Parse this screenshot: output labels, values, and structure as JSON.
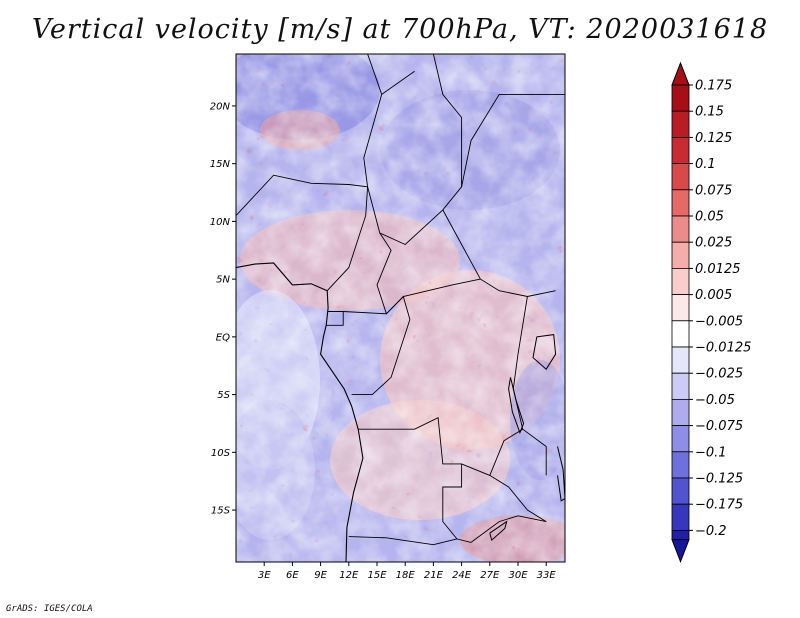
{
  "title": "Vertical velocity [m/s] at 700hPa, VT: 2020031618",
  "credit": "GrADS: IGES/COLA",
  "map": {
    "lat_range": [
      -19.5,
      24.5
    ],
    "lon_range": [
      0,
      35
    ],
    "lat_ticks": [
      {
        "value": 20,
        "label": "20N"
      },
      {
        "value": 15,
        "label": "15N"
      },
      {
        "value": 10,
        "label": "10N"
      },
      {
        "value": 5,
        "label": "5N"
      },
      {
        "value": 0,
        "label": "EQ"
      },
      {
        "value": -5,
        "label": "5S"
      },
      {
        "value": -10,
        "label": "10S"
      },
      {
        "value": -15,
        "label": "15S"
      }
    ],
    "lon_ticks": [
      {
        "value": 3,
        "label": "3E"
      },
      {
        "value": 6,
        "label": "6E"
      },
      {
        "value": 9,
        "label": "9E"
      },
      {
        "value": 12,
        "label": "12E"
      },
      {
        "value": 15,
        "label": "15E"
      },
      {
        "value": 18,
        "label": "18E"
      },
      {
        "value": 21,
        "label": "21E"
      },
      {
        "value": 24,
        "label": "24E"
      },
      {
        "value": 27,
        "label": "27E"
      },
      {
        "value": 30,
        "label": "30E"
      },
      {
        "value": 33,
        "label": "33E"
      }
    ],
    "coastline": [
      [
        0,
        6
      ],
      [
        2,
        6.3
      ],
      [
        4,
        6.4
      ],
      [
        6,
        4.5
      ],
      [
        8,
        4.6
      ],
      [
        9.7,
        4.0
      ],
      [
        9.8,
        2.5
      ],
      [
        9.6,
        1.0
      ],
      [
        9.3,
        0
      ],
      [
        9.0,
        -1.5
      ],
      [
        11.5,
        -4.5
      ],
      [
        12.3,
        -6.0
      ],
      [
        13.0,
        -8.0
      ],
      [
        13.5,
        -10.5
      ],
      [
        12.5,
        -13.5
      ],
      [
        11.8,
        -16.5
      ],
      [
        11.7,
        -19.5
      ]
    ],
    "borders": [
      [
        [
          0,
          10.5
        ],
        [
          4,
          14
        ],
        [
          8,
          13.3
        ],
        [
          12,
          13.2
        ],
        [
          14,
          13
        ]
      ],
      [
        [
          14,
          13
        ],
        [
          13.6,
          15.5
        ],
        [
          15.5,
          21
        ],
        [
          19,
          23
        ]
      ],
      [
        [
          15.5,
          21
        ],
        [
          14,
          24.5
        ]
      ],
      [
        [
          14,
          13
        ],
        [
          15.3,
          9
        ],
        [
          18,
          8
        ],
        [
          22,
          11
        ],
        [
          24,
          13
        ],
        [
          24,
          19
        ]
      ],
      [
        [
          24,
          19
        ],
        [
          22,
          21
        ],
        [
          21,
          24.5
        ]
      ],
      [
        [
          24,
          13
        ],
        [
          25,
          17
        ],
        [
          28,
          21
        ],
        [
          36,
          21
        ]
      ],
      [
        [
          22,
          11
        ],
        [
          24,
          8
        ],
        [
          26,
          5
        ],
        [
          28,
          4
        ],
        [
          31,
          3.5
        ],
        [
          34,
          4
        ]
      ],
      [
        [
          15.3,
          9
        ],
        [
          16.5,
          7.5
        ],
        [
          15,
          4.5
        ],
        [
          16,
          2
        ],
        [
          17.8,
          3.5
        ],
        [
          23,
          4.5
        ],
        [
          26,
          5
        ]
      ],
      [
        [
          9.7,
          4.0
        ],
        [
          12,
          6
        ],
        [
          13.8,
          10.5
        ],
        [
          14,
          13
        ]
      ],
      [
        [
          9.8,
          2.2
        ],
        [
          11.4,
          2.2
        ],
        [
          11.4,
          1.0
        ],
        [
          9.6,
          1.0
        ]
      ],
      [
        [
          11.4,
          2.2
        ],
        [
          16,
          2
        ],
        [
          17.8,
          3.5
        ],
        [
          18.5,
          1.5
        ],
        [
          17.5,
          -1
        ],
        [
          16.5,
          -3.5
        ],
        [
          14.5,
          -5
        ],
        [
          12.3,
          -5
        ]
      ],
      [
        [
          30,
          -1.5
        ],
        [
          29.5,
          -4.5
        ],
        [
          30.5,
          -8
        ]
      ],
      [
        [
          31,
          3.5
        ],
        [
          30.5,
          1
        ],
        [
          30,
          -1.5
        ]
      ],
      [
        [
          13,
          -8
        ],
        [
          16,
          -8
        ],
        [
          19,
          -8
        ],
        [
          21.5,
          -7
        ],
        [
          22,
          -11
        ],
        [
          24,
          -11
        ],
        [
          24,
          -13
        ],
        [
          22,
          -13
        ],
        [
          22,
          -16
        ],
        [
          23.5,
          -17.5
        ],
        [
          25,
          -17.8
        ]
      ],
      [
        [
          12,
          -17.3
        ],
        [
          16,
          -17.4
        ],
        [
          21,
          -18
        ],
        [
          23.5,
          -17.5
        ]
      ],
      [
        [
          30.5,
          -8
        ],
        [
          33,
          -9.5
        ],
        [
          33,
          -12
        ]
      ],
      [
        [
          24,
          -11
        ],
        [
          27,
          -12
        ],
        [
          29,
          -13
        ],
        [
          31,
          -15
        ],
        [
          33,
          -16
        ]
      ],
      [
        [
          25,
          -17.8
        ],
        [
          28,
          -16
        ],
        [
          30,
          -15.5
        ],
        [
          33,
          -16
        ]
      ],
      [
        [
          27,
          -12
        ],
        [
          28.5,
          -9
        ],
        [
          29.5,
          -8.5
        ],
        [
          30.5,
          -8
        ]
      ]
    ],
    "lakes": [
      [
        [
          32,
          0
        ],
        [
          33.8,
          0.2
        ],
        [
          34,
          -1.5
        ],
        [
          33,
          -2.8
        ],
        [
          31.6,
          -1.8
        ],
        [
          32,
          0
        ]
      ],
      [
        [
          29.2,
          -3.5
        ],
        [
          29.8,
          -5.5
        ],
        [
          30.6,
          -7.5
        ],
        [
          30.2,
          -8.3
        ],
        [
          29.4,
          -6.5
        ],
        [
          29.0,
          -4.5
        ],
        [
          29.2,
          -3.5
        ]
      ],
      [
        [
          34.2,
          -9.5
        ],
        [
          34.8,
          -11.5
        ],
        [
          35,
          -14
        ],
        [
          34.6,
          -14.2
        ],
        [
          34.2,
          -12
        ]
      ],
      [
        [
          27,
          -17
        ],
        [
          28.8,
          -16
        ],
        [
          28.6,
          -16.6
        ],
        [
          27.2,
          -17.6
        ],
        [
          27,
          -17
        ]
      ]
    ]
  },
  "colorbar": {
    "levels": [
      {
        "label": "0.175",
        "color": "#a50f15"
      },
      {
        "label": "0.15",
        "color": "#b81d26"
      },
      {
        "label": "0.125",
        "color": "#c82c32"
      },
      {
        "label": "0.1",
        "color": "#d84a4a"
      },
      {
        "label": "0.075",
        "color": "#e36a67"
      },
      {
        "label": "0.05",
        "color": "#ec8c8a"
      },
      {
        "label": "0.025",
        "color": "#f3adab"
      },
      {
        "label": "0.0125",
        "color": "#f8cdcc"
      },
      {
        "label": "0.005",
        "color": "#fbe8e8"
      },
      {
        "label": "−0.005",
        "color": "#ffffff"
      },
      {
        "label": "−0.0125",
        "color": "#e6e6fa"
      },
      {
        "label": "−0.025",
        "color": "#cbcbf5"
      },
      {
        "label": "−0.05",
        "color": "#adadee"
      },
      {
        "label": "−0.075",
        "color": "#8e8ee6"
      },
      {
        "label": "−0.1",
        "color": "#7070dc"
      },
      {
        "label": "−0.125",
        "color": "#5353cf"
      },
      {
        "label": "−0.175",
        "color": "#3737bd"
      },
      {
        "label": "−0.2",
        "color": "#2020a8"
      }
    ],
    "top_color": "#a50f15",
    "bottom_color": "#16169a"
  }
}
